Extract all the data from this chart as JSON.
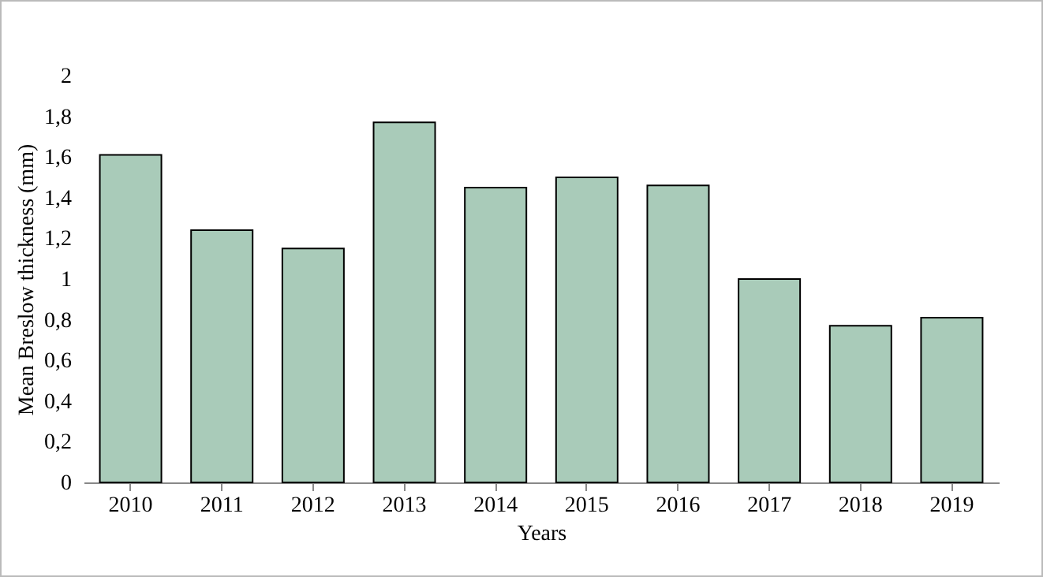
{
  "chart_data": {
    "type": "bar",
    "xlabel": "Years",
    "ylabel": "Mean Breslow thickness (mm)",
    "categories": [
      "2010",
      "2011",
      "2012",
      "2013",
      "2014",
      "2015",
      "2016",
      "2017",
      "2018",
      "2019"
    ],
    "values": [
      1.61,
      1.24,
      1.15,
      1.77,
      1.45,
      1.5,
      1.46,
      1.0,
      0.77,
      0.81
    ],
    "color": "#a9cbb9",
    "ylim": [
      0,
      2
    ],
    "yticks": [
      0,
      {
        "value": 0.2,
        "label": "0,2"
      },
      {
        "value": 0.4,
        "label": "0,4"
      },
      {
        "value": 0.6,
        "label": "0,6"
      },
      {
        "value": 0.8,
        "label": "0,8"
      },
      1,
      {
        "value": 1.2,
        "label": "1,2"
      },
      {
        "value": 1.4,
        "label": "1,4"
      },
      {
        "value": 1.6,
        "label": "1,6"
      },
      {
        "value": 1.8,
        "label": "1,8"
      },
      2
    ],
    "grid": false
  }
}
